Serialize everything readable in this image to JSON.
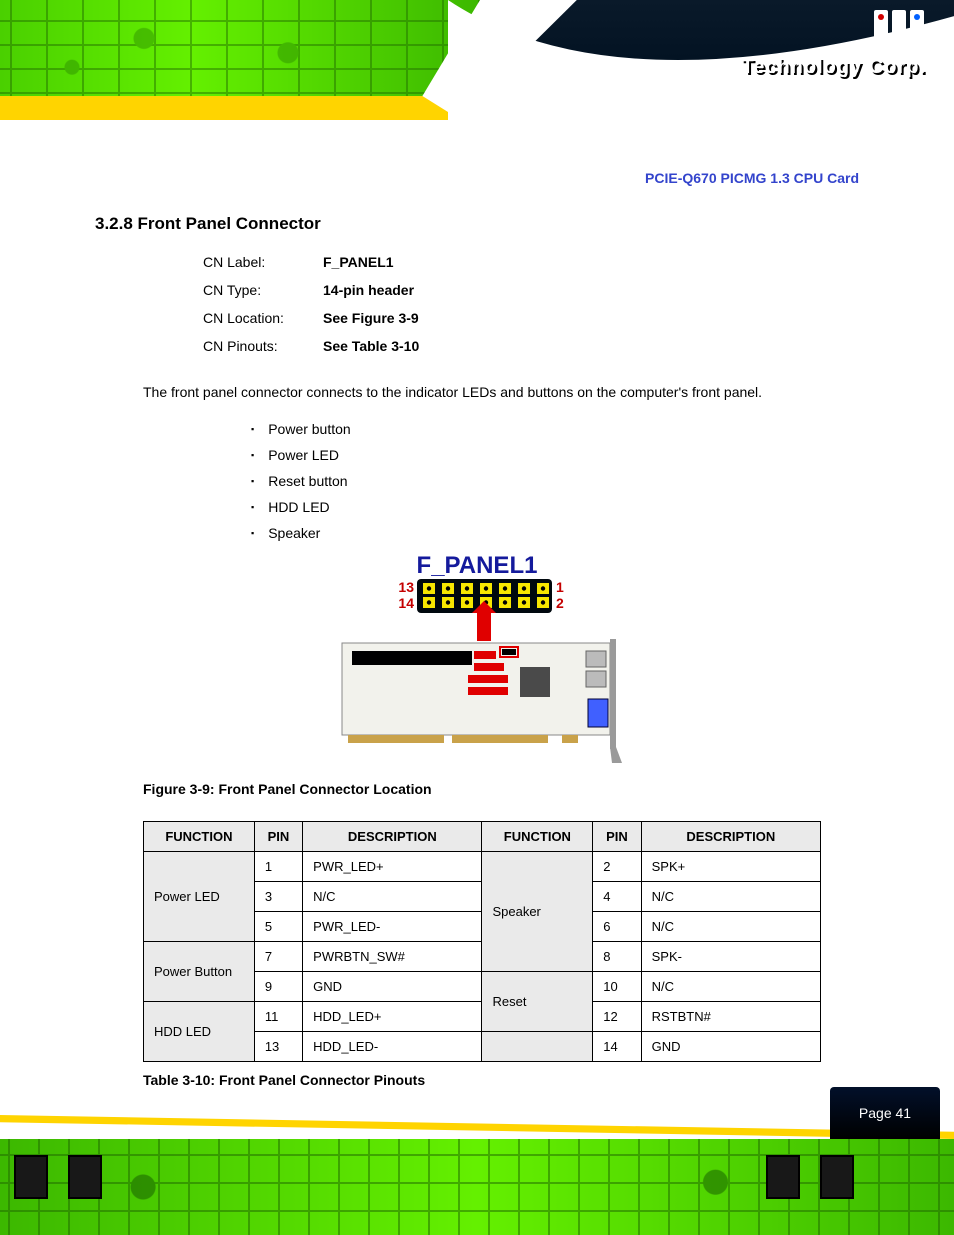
{
  "brand": {
    "corp_text": "Technology Corp.",
    "reg_mark": "®"
  },
  "page_number": "Page 41",
  "doc_title": "PCIE-Q670 PICMG 1.3 CPU Card",
  "section": {
    "number": "3.2.8",
    "title": "Front Panel Connector",
    "full": "3.2.8 Front Panel Connector"
  },
  "specs": [
    {
      "label": "CN Label:",
      "value": "F_PANEL1"
    },
    {
      "label": "CN Type:",
      "value": "14-pin header"
    },
    {
      "label": "CN Location:",
      "value": "See Figure 3-9"
    },
    {
      "label": "CN Pinouts:",
      "value": "See Table 3-10"
    }
  ],
  "body_para": "The front panel connector connects to the indicator LEDs and buttons on the computer's front panel.",
  "bullets": [
    "Power button",
    "Power LED",
    "Reset button",
    "HDD LED",
    "Speaker"
  ],
  "figure": {
    "label": "F_PANEL1",
    "pin_top_left": "13",
    "pin_top_right": "1",
    "pin_bot_left": "14",
    "pin_bot_right": "2",
    "caption": "Figure 3-9: Front Panel Connector Location"
  },
  "table": {
    "caption": "Table 3-10: Front Panel Connector Pinouts",
    "headers": [
      "FUNCTION",
      "PIN",
      "DESCRIPTION",
      "FUNCTION",
      "PIN",
      "DESCRIPTION"
    ],
    "rows": [
      [
        {
          "t": "Power LED",
          "rowspan": 3
        },
        "1",
        "PWR_LED+",
        {
          "t": "Speaker",
          "rowspan": 4
        },
        "2",
        "SPK+"
      ],
      [
        null,
        "3",
        "N/C",
        null,
        "4",
        "N/C"
      ],
      [
        null,
        "5",
        "PWR_LED-",
        null,
        "6",
        "N/C"
      ],
      [
        {
          "t": "Power Button",
          "rowspan": 2
        },
        "7",
        "PWRBTN_SW#",
        null,
        "8",
        "SPK-"
      ],
      [
        null,
        "9",
        "GND",
        {
          "t": "Reset",
          "rowspan": 2
        },
        "10",
        "N/C"
      ],
      [
        {
          "t": "HDD LED",
          "rowspan": 2
        },
        "11",
        "HDD_LED+",
        null,
        "12",
        "RSTBTN#"
      ],
      [
        null,
        "13",
        "HDD_LED-",
        {
          "t": " ",
          "rowspan": 1
        },
        "14",
        "GND"
      ]
    ]
  },
  "style": {
    "fig_label_color": "#141a9c",
    "fig_pin_num_color": "#c40000",
    "header_black": "#00080e",
    "pin_yellow": "#f7e600",
    "hdr_red": "#e00000"
  }
}
